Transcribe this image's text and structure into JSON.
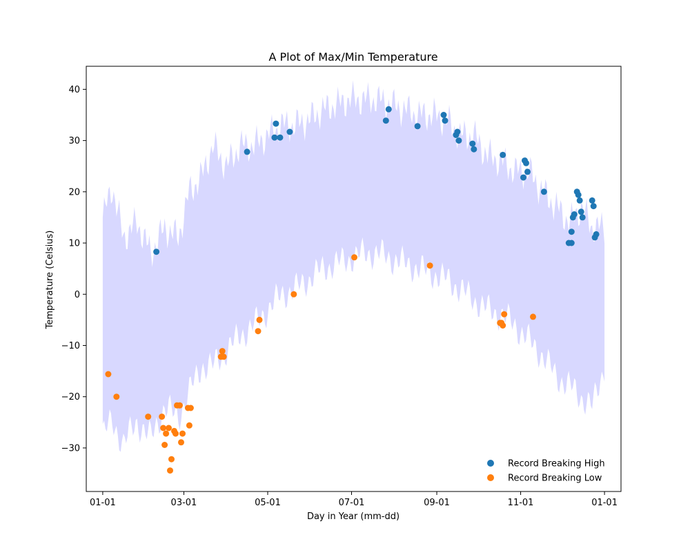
{
  "chart_data": {
    "type": "scatter",
    "title": "A Plot of Max/Min Temperature",
    "xlabel": "Day in Year (mm-dd)",
    "ylabel": "Temperature (Celsius)",
    "xlim": [
      -12,
      377
    ],
    "ylim": [
      -38.5,
      44.5
    ],
    "grid": false,
    "legend_position": "bottom-right",
    "x_ticks": [
      {
        "day": 0,
        "label": "01-01"
      },
      {
        "day": 59,
        "label": "03-01"
      },
      {
        "day": 120,
        "label": "05-01"
      },
      {
        "day": 181,
        "label": "07-01"
      },
      {
        "day": 243,
        "label": "09-01"
      },
      {
        "day": 304,
        "label": "11-01"
      },
      {
        "day": 365,
        "label": "01-01"
      }
    ],
    "y_ticks": [
      -30,
      -20,
      -10,
      0,
      10,
      20,
      30,
      40
    ],
    "band": {
      "color": "#d8d8ff",
      "knots": [
        {
          "day": 0,
          "high": 15,
          "low": -27
        },
        {
          "day": 7,
          "high": 21,
          "low": -25
        },
        {
          "day": 15,
          "high": 11,
          "low": -29
        },
        {
          "day": 25,
          "high": 14,
          "low": -25
        },
        {
          "day": 35,
          "high": 8,
          "low": -28
        },
        {
          "day": 45,
          "high": 13,
          "low": -22
        },
        {
          "day": 55,
          "high": 11,
          "low": -24
        },
        {
          "day": 63,
          "high": 20,
          "low": -19
        },
        {
          "day": 72,
          "high": 23,
          "low": -14
        },
        {
          "day": 80,
          "high": 29,
          "low": -14
        },
        {
          "day": 90,
          "high": 25,
          "low": -11
        },
        {
          "day": 100,
          "high": 29,
          "low": -8
        },
        {
          "day": 110,
          "high": 29,
          "low": -6
        },
        {
          "day": 120,
          "high": 31,
          "low": -3
        },
        {
          "day": 130,
          "high": 33,
          "low": 0
        },
        {
          "day": 140,
          "high": 33,
          "low": 1
        },
        {
          "day": 150,
          "high": 34,
          "low": 3
        },
        {
          "day": 160,
          "high": 36,
          "low": 5
        },
        {
          "day": 170,
          "high": 37,
          "low": 6
        },
        {
          "day": 180,
          "high": 38,
          "low": 7
        },
        {
          "day": 190,
          "high": 38,
          "low": 8
        },
        {
          "day": 200,
          "high": 38,
          "low": 8
        },
        {
          "day": 210,
          "high": 37,
          "low": 7
        },
        {
          "day": 220,
          "high": 36,
          "low": 6
        },
        {
          "day": 230,
          "high": 35,
          "low": 5
        },
        {
          "day": 240,
          "high": 35,
          "low": 4
        },
        {
          "day": 250,
          "high": 34,
          "low": 3
        },
        {
          "day": 260,
          "high": 31,
          "low": 1
        },
        {
          "day": 270,
          "high": 31,
          "low": -1
        },
        {
          "day": 280,
          "high": 27,
          "low": -3
        },
        {
          "day": 290,
          "high": 26,
          "low": -4
        },
        {
          "day": 300,
          "high": 24,
          "low": -6
        },
        {
          "day": 310,
          "high": 24,
          "low": -9
        },
        {
          "day": 320,
          "high": 20,
          "low": -12
        },
        {
          "day": 330,
          "high": 17,
          "low": -16
        },
        {
          "day": 340,
          "high": 14,
          "low": -18
        },
        {
          "day": 348,
          "high": 17,
          "low": -20
        },
        {
          "day": 356,
          "high": 13,
          "low": -22
        },
        {
          "day": 365,
          "high": 13,
          "low": -14
        }
      ]
    },
    "series": [
      {
        "name": "Record Breaking High",
        "color": "#1f77b4",
        "points": [
          {
            "x": 39,
            "y": 8.3
          },
          {
            "x": 105,
            "y": 27.8
          },
          {
            "x": 125,
            "y": 30.6
          },
          {
            "x": 126,
            "y": 33.3
          },
          {
            "x": 129,
            "y": 30.6
          },
          {
            "x": 136,
            "y": 31.7
          },
          {
            "x": 206,
            "y": 33.9
          },
          {
            "x": 208,
            "y": 36.1
          },
          {
            "x": 229,
            "y": 32.8
          },
          {
            "x": 248,
            "y": 35.0
          },
          {
            "x": 249,
            "y": 33.9
          },
          {
            "x": 257,
            "y": 31.1
          },
          {
            "x": 258,
            "y": 31.7
          },
          {
            "x": 259,
            "y": 30.0
          },
          {
            "x": 269,
            "y": 29.4
          },
          {
            "x": 270,
            "y": 28.3
          },
          {
            "x": 291,
            "y": 27.2
          },
          {
            "x": 306,
            "y": 22.8
          },
          {
            "x": 307,
            "y": 26.1
          },
          {
            "x": 308,
            "y": 25.6
          },
          {
            "x": 309,
            "y": 23.9
          },
          {
            "x": 321,
            "y": 20.0
          },
          {
            "x": 339,
            "y": 10.0
          },
          {
            "x": 341,
            "y": 10.0
          },
          {
            "x": 341,
            "y": 12.2
          },
          {
            "x": 342,
            "y": 15.0
          },
          {
            "x": 343,
            "y": 15.6
          },
          {
            "x": 345,
            "y": 20.0
          },
          {
            "x": 346,
            "y": 19.4
          },
          {
            "x": 347,
            "y": 18.3
          },
          {
            "x": 348,
            "y": 16.1
          },
          {
            "x": 349,
            "y": 15.0
          },
          {
            "x": 356,
            "y": 18.3
          },
          {
            "x": 357,
            "y": 17.2
          },
          {
            "x": 358,
            "y": 11.1
          },
          {
            "x": 359,
            "y": 11.7
          }
        ]
      },
      {
        "name": "Record Breaking Low",
        "color": "#ff7f0e",
        "points": [
          {
            "x": 4,
            "y": -15.6
          },
          {
            "x": 10,
            "y": -20.0
          },
          {
            "x": 33,
            "y": -23.9
          },
          {
            "x": 43,
            "y": -23.9
          },
          {
            "x": 44,
            "y": -26.1
          },
          {
            "x": 45,
            "y": -29.4
          },
          {
            "x": 46,
            "y": -27.2
          },
          {
            "x": 48,
            "y": -26.1
          },
          {
            "x": 49,
            "y": -34.4
          },
          {
            "x": 50,
            "y": -32.2
          },
          {
            "x": 52,
            "y": -26.7
          },
          {
            "x": 53,
            "y": -27.2
          },
          {
            "x": 54,
            "y": -21.7
          },
          {
            "x": 56,
            "y": -21.7
          },
          {
            "x": 57,
            "y": -28.9
          },
          {
            "x": 58,
            "y": -27.2
          },
          {
            "x": 62,
            "y": -22.2
          },
          {
            "x": 63,
            "y": -25.6
          },
          {
            "x": 64,
            "y": -22.2
          },
          {
            "x": 86,
            "y": -12.2
          },
          {
            "x": 87,
            "y": -11.1
          },
          {
            "x": 88,
            "y": -12.2
          },
          {
            "x": 113,
            "y": -7.2
          },
          {
            "x": 114,
            "y": -5.0
          },
          {
            "x": 139,
            "y": 0.0
          },
          {
            "x": 183,
            "y": 7.2
          },
          {
            "x": 238,
            "y": 5.6
          },
          {
            "x": 289,
            "y": -5.6
          },
          {
            "x": 290,
            "y": -5.6
          },
          {
            "x": 291,
            "y": -6.1
          },
          {
            "x": 292,
            "y": -3.9
          },
          {
            "x": 313,
            "y": -4.4
          }
        ]
      }
    ]
  }
}
